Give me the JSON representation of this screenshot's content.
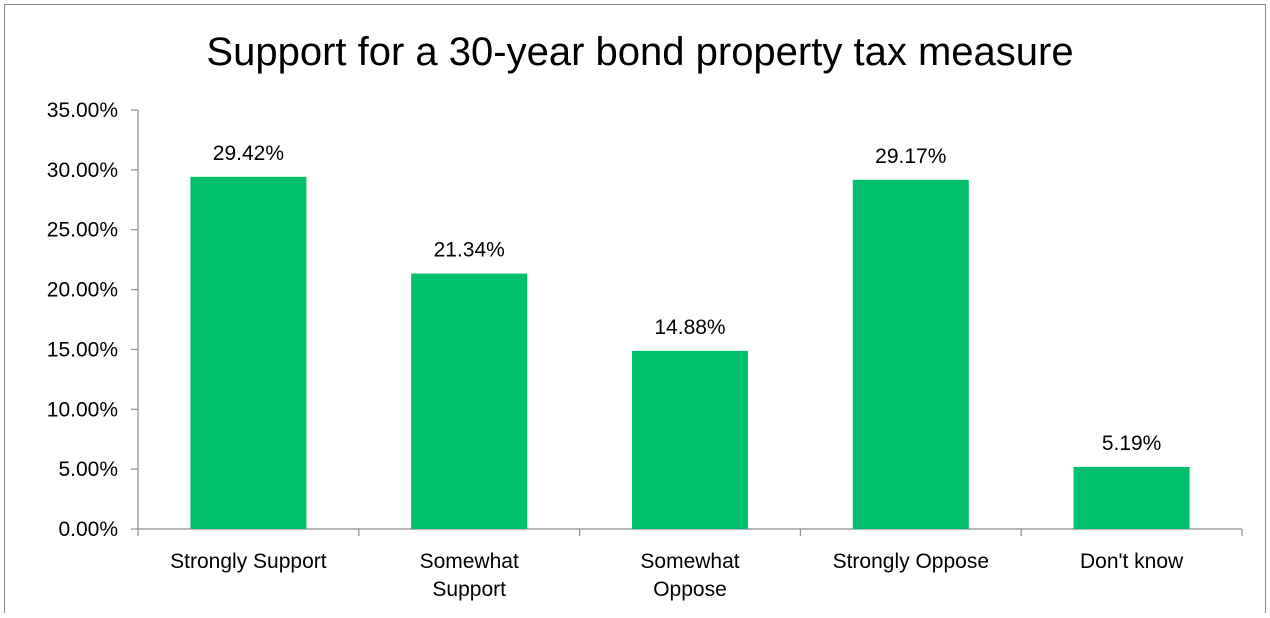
{
  "chart_data": {
    "type": "bar",
    "title": "Support for a 30-year bond property tax measure",
    "xlabel": "",
    "ylabel": "",
    "categories": [
      [
        "Strongly Support"
      ],
      [
        "Somewhat",
        "Support"
      ],
      [
        "Somewhat",
        "Oppose"
      ],
      [
        "Strongly Oppose"
      ],
      [
        "Don't know"
      ]
    ],
    "values": [
      29.42,
      21.34,
      14.88,
      29.17,
      5.19
    ],
    "data_labels": [
      "29.42%",
      "21.34%",
      "14.88%",
      "29.17%",
      "5.19%"
    ],
    "yticks": [
      0,
      5,
      10,
      15,
      20,
      25,
      30,
      35
    ],
    "ytick_labels": [
      "0.00%",
      "5.00%",
      "10.00%",
      "15.00%",
      "20.00%",
      "25.00%",
      "30.00%",
      "35.00%"
    ],
    "ylim": [
      0,
      35
    ],
    "grid": false,
    "legend": "none",
    "bar_color": "#00c06b"
  }
}
